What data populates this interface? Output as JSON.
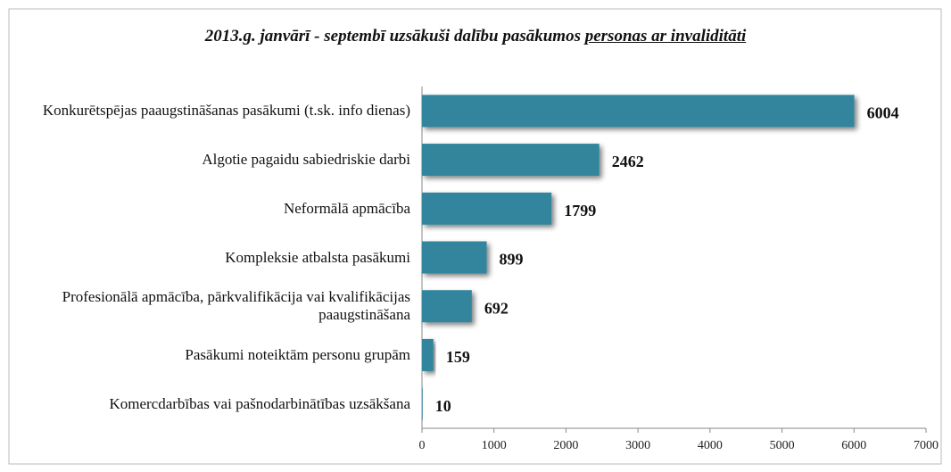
{
  "chart_data": {
    "type": "bar",
    "orientation": "horizontal",
    "title": "2013.g. janvārī - septembī uzsākuši dalību pasākumos",
    "title_underlined": "personas ar invaliditāti",
    "categories": [
      "Konkurētspējas paaugstināšanas pasākumi (t.sk. info dienas)",
      "Algotie pagaidu sabiedriskie darbi",
      "Neformālā apmācība",
      "Kompleksie atbalsta pasākumi",
      "Profesionālā apmācība, pārkvalifikācija vai kvalifikācijas paaugstināšana",
      "Pasākumi noteiktām personu grupām",
      "Komercdarbības vai pašnodarbinātības uzsākšana"
    ],
    "values": [
      6004,
      2462,
      1799,
      899,
      692,
      159,
      10
    ],
    "color": "#31859c",
    "xlim": [
      0,
      7000
    ],
    "xticks": [
      0,
      1000,
      2000,
      3000,
      4000,
      5000,
      6000,
      7000
    ],
    "grid": false
  }
}
